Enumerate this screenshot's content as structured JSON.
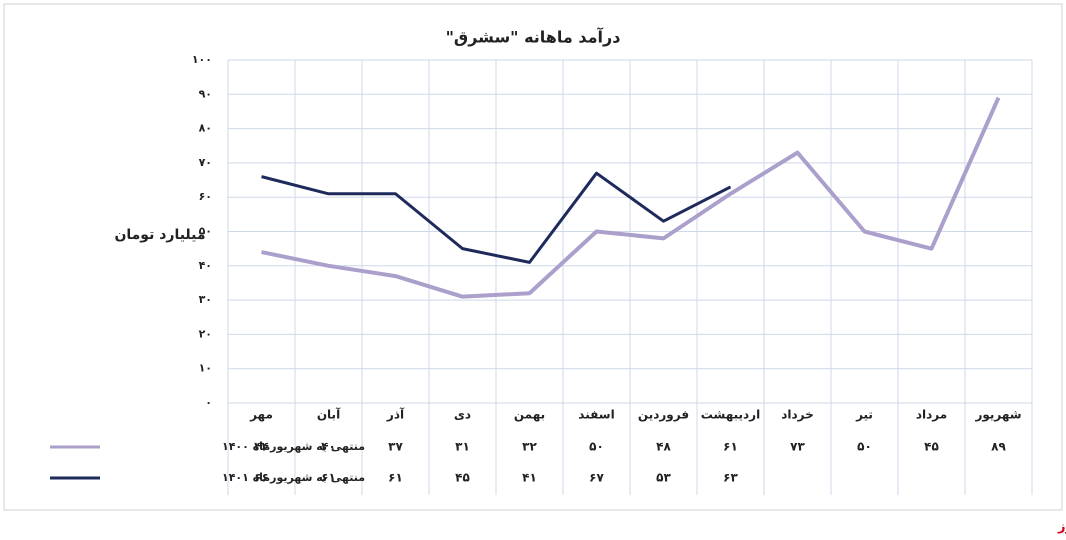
{
  "chart_data": {
    "type": "line",
    "title": "درآمد ماهانه \"سشرق\"",
    "y_label": "میلیارد تومان",
    "footer": "بورس نیوز",
    "categories": [
      "مهر",
      "آبان",
      "آذر",
      "دی",
      "بهمن",
      "اسفند",
      "فروردین",
      "اردیبهشت",
      "خرداد",
      "تیر",
      "مرداد",
      "شهریور"
    ],
    "series": [
      {
        "name": "منتهی به شهریورماه ۱۴۰۰",
        "color": "#ab9fcc",
        "values": [
          44,
          40,
          37,
          31,
          32,
          50,
          48,
          61,
          73,
          50,
          45,
          89
        ],
        "value_labels": [
          "۴۴",
          "۴۰",
          "۳۷",
          "۳۱",
          "۳۲",
          "۵۰",
          "۴۸",
          "۶۱",
          "۷۳",
          "۵۰",
          "۴۵",
          "۸۹"
        ]
      },
      {
        "name": "منتهی به شهریورماه ۱۴۰۱",
        "color": "#1e2a5c",
        "values": [
          66,
          61,
          61,
          45,
          41,
          67,
          53,
          63,
          null,
          null,
          null,
          null
        ],
        "value_labels": [
          "۶۶",
          "۶۱",
          "۶۱",
          "۴۵",
          "۴۱",
          "۶۷",
          "۵۳",
          "۶۳",
          null,
          null,
          null,
          null
        ]
      }
    ],
    "ylim": [
      0,
      100
    ],
    "yticks": [
      {
        "value": 0,
        "label": "۰"
      },
      {
        "value": 10,
        "label": "۱۰"
      },
      {
        "value": 20,
        "label": "۲۰"
      },
      {
        "value": 30,
        "label": "۳۰"
      },
      {
        "value": 40,
        "label": "۴۰"
      },
      {
        "value": 50,
        "label": "۵۰"
      },
      {
        "value": 60,
        "label": "۶۰"
      },
      {
        "value": 70,
        "label": "۷۰"
      },
      {
        "value": 80,
        "label": "۸۰"
      },
      {
        "value": 90,
        "label": "۹۰"
      },
      {
        "value": 100,
        "label": "۱۰۰"
      }
    ],
    "grid": true
  }
}
